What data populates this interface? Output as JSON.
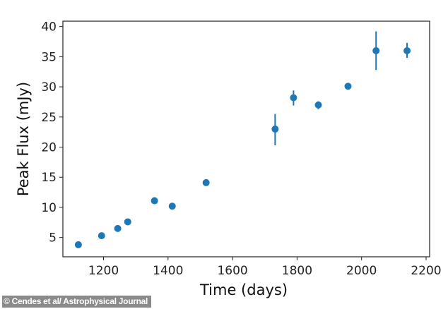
{
  "chart_data": {
    "type": "scatter",
    "title": "",
    "xlabel": "Time (days)",
    "ylabel": "Peak Flux (mJy)",
    "xlim": [
      1074,
      2211
    ],
    "ylim": [
      1.8,
      40.9
    ],
    "xticks": [
      1200,
      1400,
      1600,
      1800,
      2000,
      2200
    ],
    "yticks": [
      5,
      10,
      15,
      20,
      25,
      30,
      35,
      40
    ],
    "grid": false,
    "color": "#1f77b4",
    "points": [
      {
        "x": 1122,
        "y": 3.8
      },
      {
        "x": 1194,
        "y": 5.3
      },
      {
        "x": 1244,
        "y": 6.5
      },
      {
        "x": 1275,
        "y": 7.6
      },
      {
        "x": 1358,
        "y": 11.1
      },
      {
        "x": 1413,
        "y": 10.2
      },
      {
        "x": 1518,
        "y": 14.1
      },
      {
        "x": 1732,
        "y": 23.0,
        "ylo": 20.3,
        "yhi": 25.5
      },
      {
        "x": 1789,
        "y": 28.2,
        "ylo": 26.9,
        "yhi": 29.4
      },
      {
        "x": 1866,
        "y": 27.0,
        "ylo": 26.3,
        "yhi": 27.6
      },
      {
        "x": 1958,
        "y": 30.1
      },
      {
        "x": 2045,
        "y": 36.0,
        "ylo": 32.8,
        "yhi": 39.2
      },
      {
        "x": 2141,
        "y": 36.0,
        "ylo": 34.8,
        "yhi": 37.3
      }
    ]
  },
  "credit": "© Cendes et al/ Astrophysical Journal"
}
